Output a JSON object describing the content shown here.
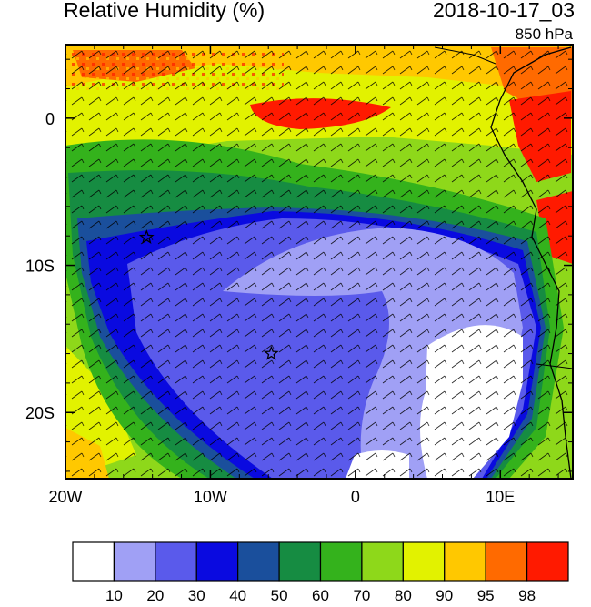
{
  "header": {
    "title": "Relative Humidity (%)",
    "datetime": "2018-10-17_03",
    "level": "850 hPa"
  },
  "map": {
    "lon_range": [
      -20,
      15
    ],
    "lat_range": [
      -24.5,
      5
    ],
    "lon_ticks": [
      {
        "value": -20,
        "label": "20W"
      },
      {
        "value": -10,
        "label": "10W"
      },
      {
        "value": 0,
        "label": "0"
      },
      {
        "value": 10,
        "label": "10E"
      }
    ],
    "lat_ticks": [
      {
        "value": 0,
        "label": "0"
      },
      {
        "value": -10,
        "label": "10S"
      },
      {
        "value": -20,
        "label": "20S"
      }
    ],
    "markers": [
      {
        "name": "star-marker-1",
        "lon": -14.4,
        "lat": -8.1
      },
      {
        "name": "star-marker-2",
        "lon": -5.8,
        "lat": -16.0
      }
    ],
    "field": "relative humidity",
    "overlay": "wind barbs"
  },
  "colorbar": {
    "colors": [
      "#ffffff",
      "#a0a0f5",
      "#5a5aeb",
      "#0a0ae0",
      "#1a4f9c",
      "#168c42",
      "#34b21c",
      "#8ed81a",
      "#e2f200",
      "#ffc800",
      "#ff6a00",
      "#ff1a00"
    ],
    "labels": [
      "10",
      "20",
      "30",
      "40",
      "50",
      "60",
      "70",
      "80",
      "90",
      "95",
      "98"
    ]
  }
}
